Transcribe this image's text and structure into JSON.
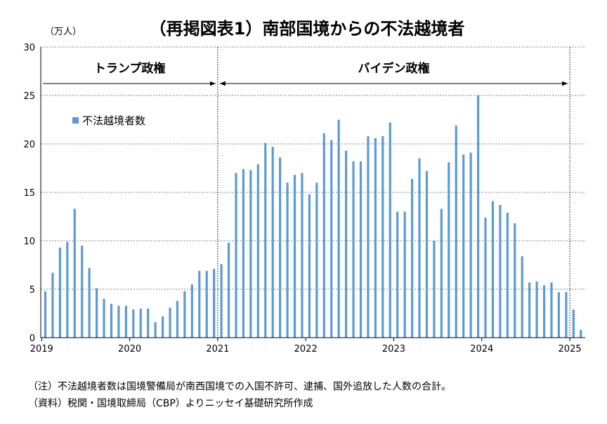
{
  "title": "（再掲図表1）南部国境からの不法越境者",
  "unit_label": "（万人）",
  "chart_data": {
    "type": "bar",
    "title": "（再掲図表1）南部国境からの不法越境者",
    "ylabel": "（万人）",
    "ylim": [
      0,
      30
    ],
    "yticks": [
      "0",
      "5",
      "10",
      "15",
      "20",
      "25",
      "30"
    ],
    "xticks": [
      "2019",
      "2020",
      "2021",
      "2022",
      "2023",
      "2024",
      "2025"
    ],
    "start_month": "2019-01",
    "grid": true,
    "legend_position": "upper-left",
    "series": [
      {
        "name": "不法越境者数",
        "color": "#5b9bd5",
        "values": [
          4.8,
          6.7,
          9.3,
          9.9,
          13.3,
          9.5,
          7.2,
          5.1,
          4.0,
          3.5,
          3.3,
          3.3,
          2.9,
          3.0,
          3.0,
          1.6,
          2.2,
          3.1,
          3.8,
          4.8,
          5.5,
          6.9,
          6.9,
          7.1,
          7.6,
          9.8,
          17.0,
          17.4,
          17.3,
          17.9,
          20.1,
          19.7,
          18.6,
          16.0,
          16.8,
          17.0,
          14.8,
          16.0,
          21.1,
          20.4,
          22.5,
          19.3,
          18.2,
          18.2,
          20.8,
          20.6,
          20.8,
          22.2,
          13.0,
          13.0,
          16.4,
          18.5,
          17.2,
          10.0,
          13.3,
          18.1,
          21.9,
          18.9,
          19.1,
          25.0,
          12.4,
          14.1,
          13.7,
          12.9,
          11.8,
          8.4,
          5.7,
          5.8,
          5.4,
          5.7,
          4.7,
          4.7,
          2.9,
          0.8
        ]
      }
    ],
    "annotations": [
      {
        "label": "トランプ政権",
        "from": "2019-01",
        "to": "2021-01"
      },
      {
        "label": "バイデン政権",
        "from": "2021-01",
        "to": "2025-01"
      }
    ]
  },
  "notes": [
    "（注）不法越境者数は国境警備局が南西国境での入国不許可、逮捕、国外追放した人数の合計。",
    "（資料）税関・国境取締局（CBP）よりニッセイ基礎研究所作成"
  ]
}
